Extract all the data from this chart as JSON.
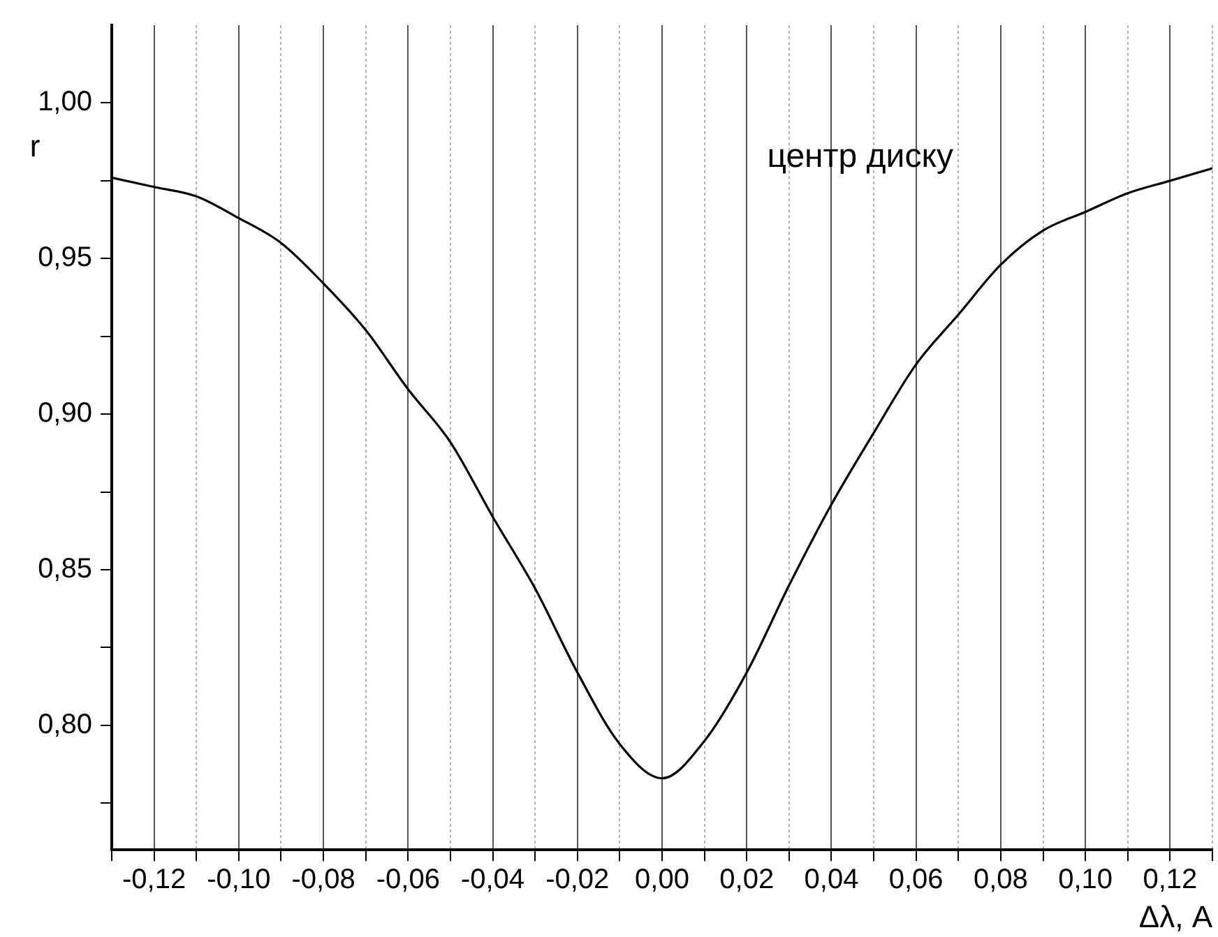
{
  "chart_data": {
    "type": "line",
    "xlabel": "Δλ, A",
    "ylabel": "r",
    "annotations": [
      "центр диску"
    ],
    "x": [
      -0.13,
      -0.12,
      -0.11,
      -0.1,
      -0.09,
      -0.08,
      -0.07,
      -0.06,
      -0.05,
      -0.04,
      -0.03,
      -0.02,
      -0.01,
      0.0,
      0.01,
      0.02,
      0.03,
      0.04,
      0.05,
      0.06,
      0.07,
      0.08,
      0.09,
      0.1,
      0.11,
      0.12,
      0.13
    ],
    "series": [
      {
        "color": "#000000",
        "values": [
          0.976,
          0.973,
          0.97,
          0.963,
          0.955,
          0.942,
          0.927,
          0.908,
          0.891,
          0.867,
          0.844,
          0.817,
          0.794,
          0.783,
          0.795,
          0.817,
          0.845,
          0.871,
          0.894,
          0.916,
          0.932,
          0.948,
          0.959,
          0.965,
          0.971,
          0.975,
          0.979
        ]
      }
    ],
    "xlim": [
      -0.13,
      0.13
    ],
    "xticks": [
      {
        "value": -0.13,
        "label": null
      },
      {
        "value": -0.12,
        "label": "-0,12"
      },
      {
        "value": -0.11,
        "label": null
      },
      {
        "value": -0.1,
        "label": "-0,10"
      },
      {
        "value": -0.09,
        "label": null
      },
      {
        "value": -0.08,
        "label": "-0,08"
      },
      {
        "value": -0.07,
        "label": null
      },
      {
        "value": -0.06,
        "label": "-0,06"
      },
      {
        "value": -0.05,
        "label": null
      },
      {
        "value": -0.04,
        "label": "-0,04"
      },
      {
        "value": -0.03,
        "label": null
      },
      {
        "value": -0.02,
        "label": "-0,02"
      },
      {
        "value": -0.01,
        "label": null
      },
      {
        "value": 0.0,
        "label": "0,00"
      },
      {
        "value": 0.01,
        "label": null
      },
      {
        "value": 0.02,
        "label": "0,02"
      },
      {
        "value": 0.03,
        "label": null
      },
      {
        "value": 0.04,
        "label": "0,04"
      },
      {
        "value": 0.05,
        "label": null
      },
      {
        "value": 0.06,
        "label": "0,06"
      },
      {
        "value": 0.07,
        "label": null
      },
      {
        "value": 0.08,
        "label": "0,08"
      },
      {
        "value": 0.09,
        "label": null
      },
      {
        "value": 0.1,
        "label": "0,10"
      },
      {
        "value": 0.11,
        "label": null
      },
      {
        "value": 0.12,
        "label": "0,12"
      },
      {
        "value": 0.13,
        "label": null
      }
    ],
    "ylim": [
      0.76,
      1.025
    ],
    "yticks": [
      {
        "value": 0.775,
        "label": null
      },
      {
        "value": 0.8,
        "label": "0,80"
      },
      {
        "value": 0.825,
        "label": null
      },
      {
        "value": 0.85,
        "label": "0,85"
      },
      {
        "value": 0.875,
        "label": null
      },
      {
        "value": 0.9,
        "label": "0,90"
      },
      {
        "value": 0.925,
        "label": null
      },
      {
        "value": 0.95,
        "label": "0,95"
      },
      {
        "value": 0.975,
        "label": null
      },
      {
        "value": 1.0,
        "label": "1,00"
      }
    ],
    "grid": "x",
    "legend": false,
    "marker": "none",
    "line_style": "solid"
  }
}
